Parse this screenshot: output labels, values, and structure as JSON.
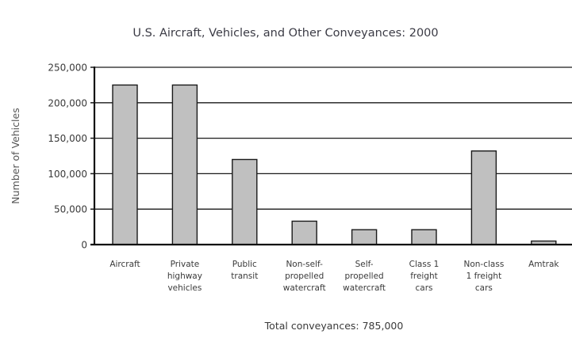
{
  "chart_data": {
    "type": "bar",
    "title": "U.S. Aircraft, Vehicles, and Other Conveyances: 2000",
    "xlabel": "",
    "ylabel": "Number of Vehicles",
    "ylim": [
      0,
      250000
    ],
    "yticks": [
      0,
      50000,
      100000,
      150000,
      200000,
      250000
    ],
    "ytick_labels": [
      "0",
      "50,000",
      "100,000",
      "150,000",
      "200,000",
      "250,000"
    ],
    "grid": true,
    "categories": [
      [
        "Aircraft"
      ],
      [
        "Private",
        "highway",
        "vehicles"
      ],
      [
        "Public",
        "transit"
      ],
      [
        "Non-self-",
        "propelled",
        "watercraft"
      ],
      [
        "Self-",
        "propelled",
        "watercraft"
      ],
      [
        "Class 1",
        "freight",
        "cars"
      ],
      [
        "Non-class",
        "1 freight",
        "cars"
      ],
      [
        "Amtrak"
      ]
    ],
    "values": [
      225000,
      225000,
      120000,
      33000,
      21000,
      21000,
      132000,
      5000
    ],
    "bar_color": "#c0c0c0",
    "footnote": "Total conveyances: 785,000"
  }
}
